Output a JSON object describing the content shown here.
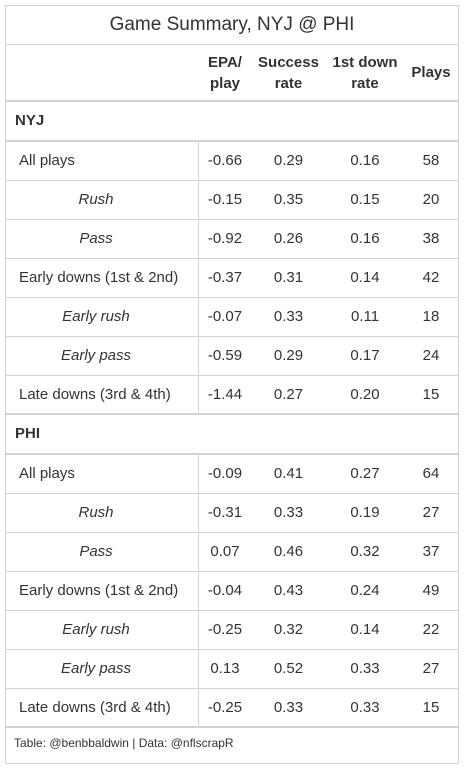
{
  "title": "Game Summary, NYJ @ PHI",
  "headers": [
    "",
    "EPA/\nplay",
    "Success\nrate",
    "1st down\nrate",
    "Plays"
  ],
  "groups": [
    {
      "name": "NYJ",
      "rows": [
        {
          "label": "All plays",
          "sub": false,
          "epa": "-0.66",
          "success": "0.29",
          "first_down": "0.16",
          "plays": "58"
        },
        {
          "label": "Rush",
          "sub": true,
          "epa": "-0.15",
          "success": "0.35",
          "first_down": "0.15",
          "plays": "20"
        },
        {
          "label": "Pass",
          "sub": true,
          "epa": "-0.92",
          "success": "0.26",
          "first_down": "0.16",
          "plays": "38"
        },
        {
          "label": "Early downs (1st & 2nd)",
          "sub": false,
          "epa": "-0.37",
          "success": "0.31",
          "first_down": "0.14",
          "plays": "42"
        },
        {
          "label": "Early rush",
          "sub": true,
          "epa": "-0.07",
          "success": "0.33",
          "first_down": "0.11",
          "plays": "18"
        },
        {
          "label": "Early pass",
          "sub": true,
          "epa": "-0.59",
          "success": "0.29",
          "first_down": "0.17",
          "plays": "24"
        },
        {
          "label": "Late downs (3rd & 4th)",
          "sub": false,
          "epa": "-1.44",
          "success": "0.27",
          "first_down": "0.20",
          "plays": "15"
        }
      ]
    },
    {
      "name": "PHI",
      "rows": [
        {
          "label": "All plays",
          "sub": false,
          "epa": "-0.09",
          "success": "0.41",
          "first_down": "0.27",
          "plays": "64"
        },
        {
          "label": "Rush",
          "sub": true,
          "epa": "-0.31",
          "success": "0.33",
          "first_down": "0.19",
          "plays": "27"
        },
        {
          "label": "Pass",
          "sub": true,
          "epa": "0.07",
          "success": "0.46",
          "first_down": "0.32",
          "plays": "37"
        },
        {
          "label": "Early downs (1st & 2nd)",
          "sub": false,
          "epa": "-0.04",
          "success": "0.43",
          "first_down": "0.24",
          "plays": "49"
        },
        {
          "label": "Early rush",
          "sub": true,
          "epa": "-0.25",
          "success": "0.32",
          "first_down": "0.14",
          "plays": "22"
        },
        {
          "label": "Early pass",
          "sub": true,
          "epa": "0.13",
          "success": "0.52",
          "first_down": "0.33",
          "plays": "27"
        },
        {
          "label": "Late downs (3rd & 4th)",
          "sub": false,
          "epa": "-0.25",
          "success": "0.33",
          "first_down": "0.33",
          "plays": "15"
        }
      ]
    }
  ],
  "footer": "Table: @benbbaldwin | Data: @nflscrapR"
}
